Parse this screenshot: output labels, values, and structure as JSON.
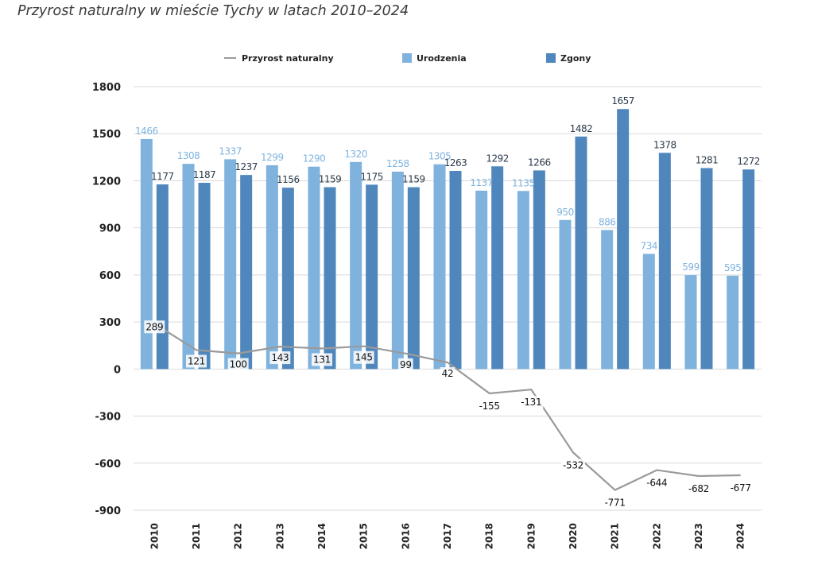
{
  "title": "Przyrost naturalny w mieście Tychy w latach 2010–2024",
  "colors": {
    "births": "#7fb3de",
    "deaths": "#4f87bd",
    "line": "#9a9a9a",
    "grid": "#d9d9d9"
  },
  "chart_data": {
    "type": "bar",
    "categories": [
      "2010",
      "2011",
      "2012",
      "2013",
      "2014",
      "2015",
      "2016",
      "2017",
      "2018",
      "2019",
      "2020",
      "2021",
      "2022",
      "2023",
      "2024"
    ],
    "series": [
      {
        "name": "Urodzenia",
        "type": "bar",
        "values": [
          1466,
          1308,
          1337,
          1299,
          1290,
          1320,
          1258,
          1305,
          1137,
          1135,
          950,
          886,
          734,
          599,
          595
        ]
      },
      {
        "name": "Zgony",
        "type": "bar",
        "values": [
          1177,
          1187,
          1237,
          1156,
          1159,
          1175,
          1159,
          1263,
          1292,
          1266,
          1482,
          1657,
          1378,
          1281,
          1272
        ]
      },
      {
        "name": "Przyrost naturalny",
        "type": "line",
        "values": [
          289,
          121,
          100,
          143,
          131,
          145,
          99,
          42,
          -155,
          -131,
          -532,
          -771,
          -644,
          -682,
          -677
        ]
      }
    ],
    "value_labels": {
      "Urodzenia": [
        "1466",
        "1308",
        "1337",
        "1299",
        "1290",
        "1320",
        "1258",
        "1305",
        "1137",
        "1135",
        "950",
        "886",
        "734",
        "599",
        "595"
      ],
      "Zgony": [
        "1177",
        "1187",
        "1237",
        "1156",
        "1159",
        "1175",
        "1159",
        "1263",
        "1292",
        "1266",
        "1482",
        "1657",
        "1378",
        "1281",
        "1272"
      ],
      "Przyrost naturalny": [
        "289",
        "121",
        "100",
        "143",
        "131",
        "145",
        "99",
        "42",
        "-155",
        "-131",
        "-532",
        "-771",
        "-644",
        "-682",
        "-677"
      ]
    },
    "yticks": [
      "1800",
      "1500",
      "1200",
      "900",
      "600",
      "300",
      "0",
      "-300",
      "-600",
      "-900"
    ],
    "ylim": [
      -900,
      1800
    ],
    "grid": true,
    "legend": {
      "position": "top",
      "order": [
        "Przyrost naturalny",
        "Urodzenia",
        "Zgony"
      ]
    }
  }
}
